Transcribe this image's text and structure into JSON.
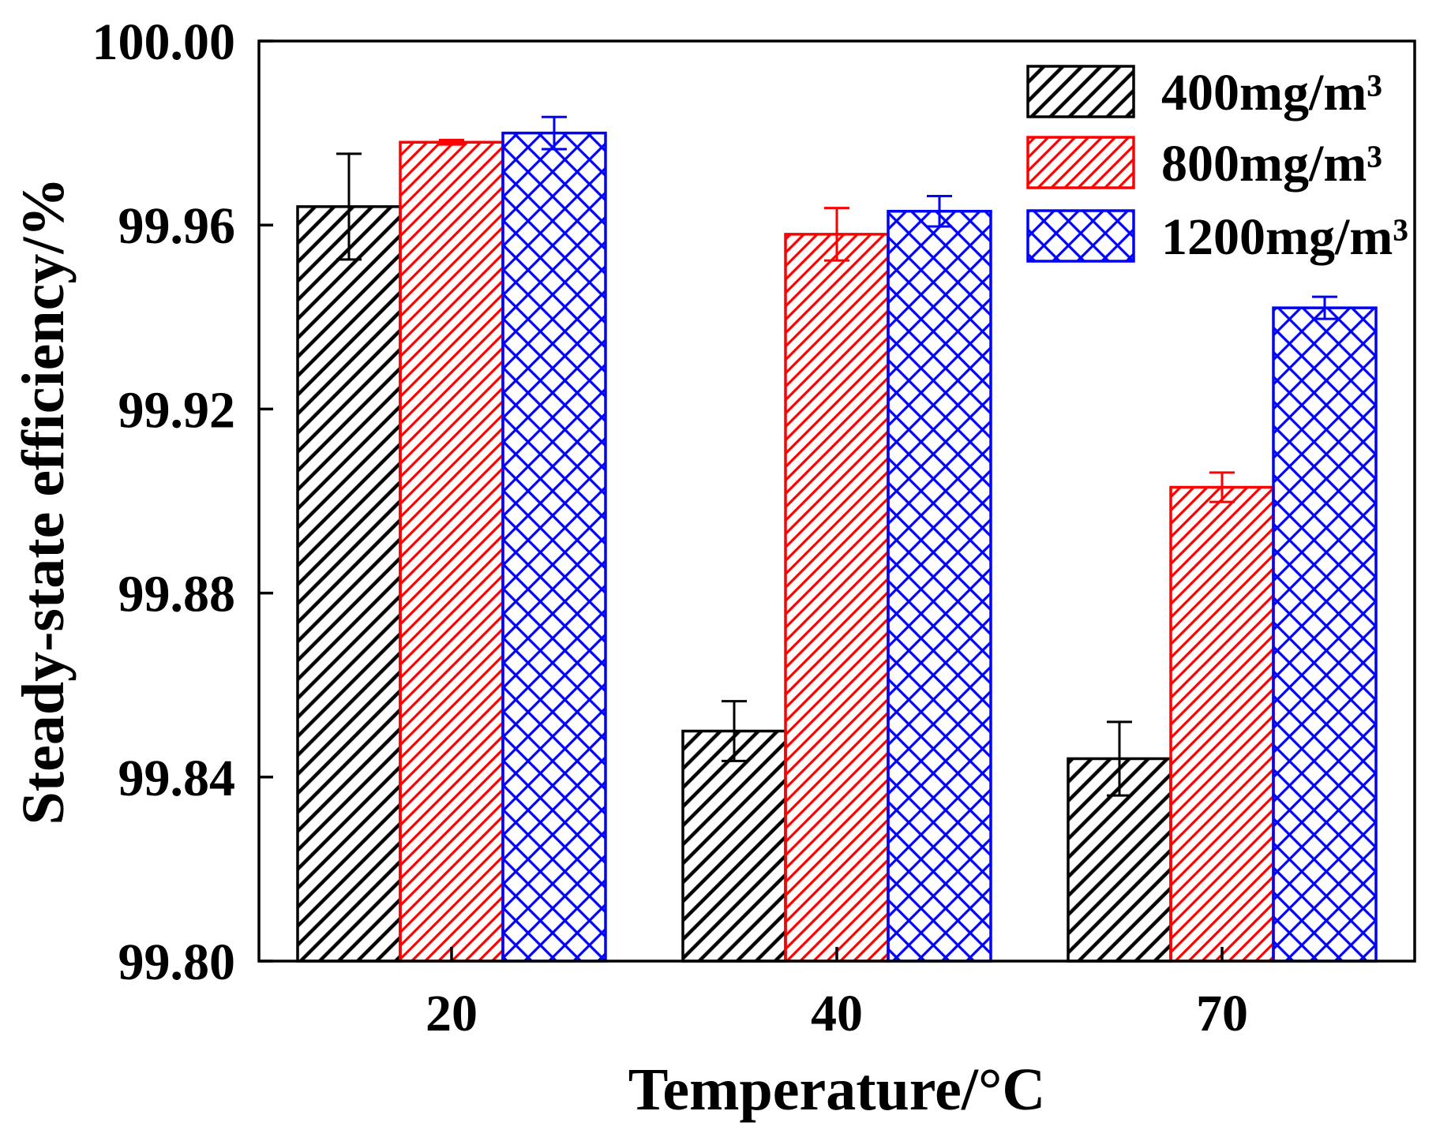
{
  "chart_data": {
    "type": "bar",
    "title": "",
    "xlabel": "Temperature/°C",
    "ylabel": "Steady-state efficiency/%",
    "categories": [
      "20",
      "40",
      "70"
    ],
    "ylim": [
      99.8,
      100.0
    ],
    "yticks": [
      99.8,
      99.84,
      99.88,
      99.92,
      99.96,
      100.0
    ],
    "ytick_labels": [
      "99.80",
      "99.84",
      "99.88",
      "99.92",
      "99.96",
      "100.00"
    ],
    "grid": false,
    "error_bars": true,
    "legend_position": "top-right",
    "series": [
      {
        "name": "400mg/m³",
        "color": "#000000",
        "values": [
          99.964,
          99.85,
          99.844
        ],
        "errors": [
          0.0115,
          0.0065,
          0.008
        ]
      },
      {
        "name": "800mg/m³",
        "color": "#ff0000",
        "values": [
          99.978,
          99.958,
          99.903
        ],
        "errors": [
          0.0005,
          0.0057,
          0.0032
        ]
      },
      {
        "name": "1200mg/m³",
        "color": "#0000ff",
        "values": [
          99.98,
          99.963,
          99.942
        ],
        "errors": [
          0.0035,
          0.0033,
          0.0024
        ]
      }
    ]
  }
}
